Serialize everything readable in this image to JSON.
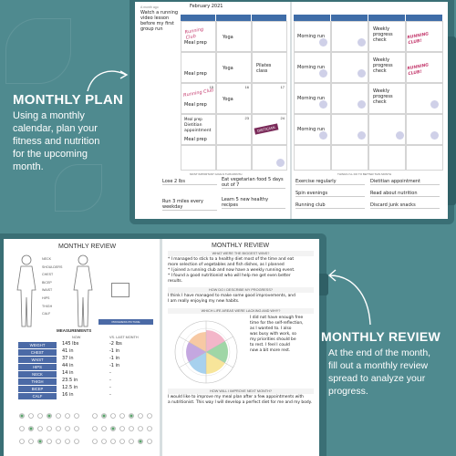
{
  "colors": {
    "background": "#4f8a8f",
    "cover": "#3a6f75",
    "header_blue": "#3f6da8",
    "accent_magenta": "#c43a6d"
  },
  "monthly_plan": {
    "title": "MONTHLY PLAN",
    "description": [
      "Using a monthly",
      "calendar, plan your",
      "fitness and nutrition",
      "for the upcoming",
      "month."
    ]
  },
  "monthly_review": {
    "title": "MONTHLY REVIEW",
    "description": [
      "At the end of the month,",
      "fill out a monthly review",
      "spread to analyze your",
      "progress."
    ]
  },
  "calendar": {
    "month_label": "February 2021",
    "notes_label": "A month ago",
    "notes_text": [
      "Watch a running",
      "video lesson",
      "before my first",
      "group run"
    ],
    "headers": [
      "",
      "",
      "",
      "",
      "",
      "",
      ""
    ],
    "dates": [
      "15",
      "16",
      "17",
      "22",
      "23",
      "24"
    ],
    "left_entries": [
      "Running Club",
      "Meal prep",
      "Yoga",
      "Meal prep",
      "Yoga",
      "Pilates class",
      "Running Club",
      "Meal prep",
      "Yoga",
      "Meal prep",
      "Dietitian appointment",
      "Meal prep"
    ],
    "right_entries": [
      "Morning run",
      "Weekly progress check",
      "Morning run",
      "Weekly progress check",
      "Morning run",
      "Weekly progress check",
      "Morning run"
    ],
    "stickers": [
      "RUNNING CLUB!",
      "RUNNING CLUB!"
    ],
    "coupon": "DIETICIAN",
    "goals_left_caption": "MOST IMPORTANT GOALS THIS MONTH",
    "goals_right_caption": "THINGS I'LL DO TO BETTER THIS MONTH",
    "goals_left": [
      "Lose 2 lbs",
      "Eat vegetarian food 5 days out of 7",
      "Run 3 miles every weekday",
      "Learn 5 new healthy recipes"
    ],
    "goals_right": [
      "Exercise regularly",
      "Dietitian appointment",
      "Spin evenings",
      "Read about nutrition",
      "Running club",
      "Discard junk snacks"
    ]
  },
  "review": {
    "left_title": "MONTHLY REVIEW",
    "body_labels": [
      "NECK",
      "SHOULDERS",
      "CHEST",
      "BICEP",
      "WAIST",
      "HIPS",
      "THIGH",
      "CALF"
    ],
    "progress_label": "PROGRESS PICTURE",
    "measurements_title": "MEASUREMENTS",
    "col_now": "NOW",
    "col_last": "VS. LAST MONTH",
    "rows": [
      {
        "label": "WEIGHT",
        "now": "145 lbs",
        "last": "-2 lbs"
      },
      {
        "label": "CHEST",
        "now": "41 in",
        "last": "-1 in"
      },
      {
        "label": "WAIST",
        "now": "37 in",
        "last": "-1 in"
      },
      {
        "label": "HIPS",
        "now": "44 in",
        "last": "-1 in"
      },
      {
        "label": "NECK",
        "now": "14 in",
        "last": "-"
      },
      {
        "label": "THIGH",
        "now": "23.5 in",
        "last": "-"
      },
      {
        "label": "BICEP",
        "now": "12.5 in",
        "last": "-"
      },
      {
        "label": "CALF",
        "now": "16 in",
        "last": "-"
      }
    ],
    "right_title": "MONTHLY REVIEW",
    "wins_q": "WHAT WERE THE BIGGEST WINS?",
    "wins": [
      "* I managed to stick to a healthy diet most of the time and eat",
      "more selection of vegetables and fish dishes, as I planned",
      "* I joined a running club and now have a weekly running event.",
      "* I found a good nutritionist who will help me get even better",
      "results."
    ],
    "progress_q": "HOW DO I DESCRIBE MY PROGRESS?",
    "progress": [
      "I think I have managed to make some good improvements, and",
      "I am really enjoying my new habits."
    ],
    "lacking_q": "WHICH LIFE AREAS WERE LACKING AND WHY?",
    "lacking": [
      "I did not have enough free",
      "time for the self-reflection,",
      "as I wanted to. I also",
      "was busy with work, so",
      "my priorities should be",
      "to rest. I feel I could",
      "now a bit more rest."
    ],
    "improve_q": "HOW WILL I IMPROVE NEXT MONTH?",
    "improve": [
      "I would like to improve my meal plan after a few appointments with",
      "a nutritionist. This way I will develop a perfect diet for me and my body."
    ]
  }
}
